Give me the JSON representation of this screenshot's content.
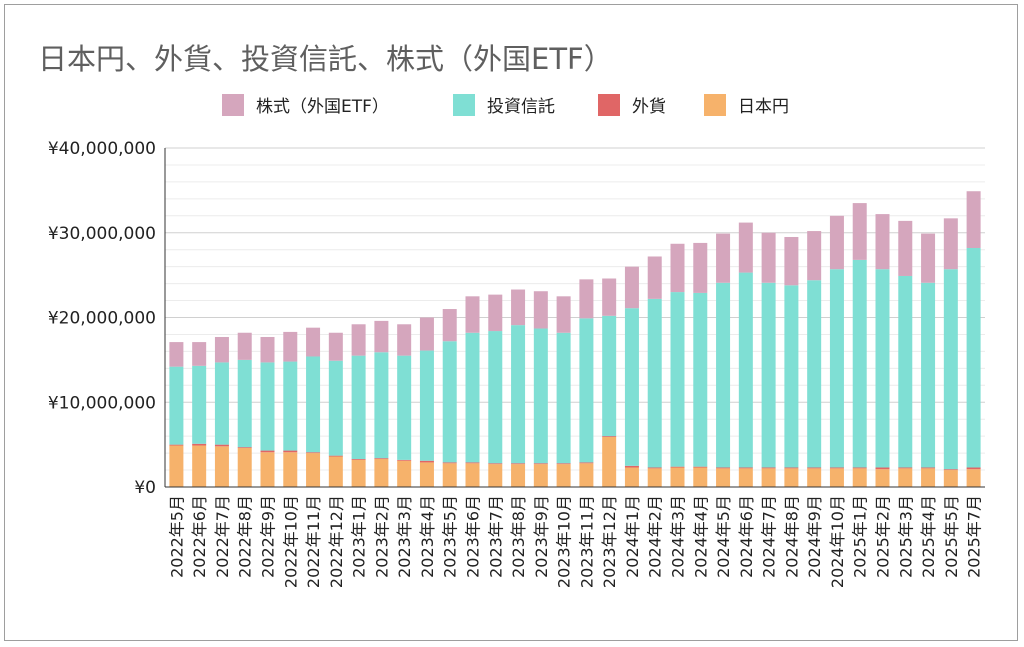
{
  "chart_data": {
    "type": "bar",
    "stacked": true,
    "title": "日本円、外貨、投資信託、株式（外国ETF）",
    "xlabel": "",
    "ylabel": "",
    "ylim": [
      0,
      40000000
    ],
    "yticks": [
      0,
      10000000,
      20000000,
      30000000,
      40000000
    ],
    "ytick_labels": [
      "¥0",
      "¥10,000,000",
      "¥20,000,000",
      "¥30,000,000",
      "¥40,000,000"
    ],
    "grid": true,
    "legend_position": "top",
    "categories": [
      "2022年5月",
      "2022年6月",
      "2022年7月",
      "2022年8月",
      "2022年9月",
      "2022年10月",
      "2022年11月",
      "2022年12月",
      "2023年1月",
      "2023年2月",
      "2023年3月",
      "2023年4月",
      "2023年5月",
      "2023年6月",
      "2023年7月",
      "2023年8月",
      "2023年9月",
      "2023年10月",
      "2023年11月",
      "2023年12月",
      "2024年1月",
      "2024年2月",
      "2024年3月",
      "2024年4月",
      "2024年5月",
      "2024年6月",
      "2024年7月",
      "2024年8月",
      "2024年9月",
      "2024年10月",
      "2025年1月",
      "2025年2月",
      "2025年3月",
      "2025年4月",
      "2025年5月",
      "2025年7月"
    ],
    "series": [
      {
        "name": "日本円",
        "color": "#f6b26b",
        "values": [
          4900000,
          4900000,
          4800000,
          4600000,
          4100000,
          4100000,
          4000000,
          3600000,
          3200000,
          3300000,
          3100000,
          2900000,
          2800000,
          2800000,
          2700000,
          2700000,
          2700000,
          2700000,
          2800000,
          5900000,
          2300000,
          2200000,
          2300000,
          2300000,
          2200000,
          2200000,
          2200000,
          2200000,
          2200000,
          2200000,
          2200000,
          2100000,
          2200000,
          2200000,
          2000000,
          2100000
        ]
      },
      {
        "name": "外貨",
        "color": "#e06666",
        "values": [
          100000,
          200000,
          200000,
          100000,
          200000,
          200000,
          100000,
          100000,
          100000,
          100000,
          100000,
          200000,
          100000,
          100000,
          100000,
          100000,
          100000,
          100000,
          100000,
          100000,
          200000,
          100000,
          100000,
          100000,
          100000,
          100000,
          100000,
          100000,
          100000,
          100000,
          100000,
          200000,
          100000,
          100000,
          100000,
          200000
        ]
      },
      {
        "name": "投資信託",
        "color": "#7fdfd4",
        "values": [
          9200000,
          9200000,
          9700000,
          10300000,
          10400000,
          10500000,
          11300000,
          11200000,
          12200000,
          12500000,
          12300000,
          13000000,
          14300000,
          15300000,
          15600000,
          16300000,
          15900000,
          15400000,
          17000000,
          14200000,
          18600000,
          19900000,
          20600000,
          20500000,
          21800000,
          23000000,
          21800000,
          21500000,
          22100000,
          23400000,
          24500000,
          23400000,
          22600000,
          21800000,
          23600000,
          25900000
        ]
      },
      {
        "name": "株式（外国ETF）",
        "color": "#d5a6bd",
        "values": [
          2900000,
          2800000,
          3000000,
          3200000,
          3000000,
          3500000,
          3400000,
          3300000,
          3700000,
          3700000,
          3700000,
          3900000,
          3800000,
          4300000,
          4300000,
          4200000,
          4400000,
          4300000,
          4600000,
          4400000,
          4900000,
          5000000,
          5700000,
          5900000,
          5800000,
          5900000,
          5900000,
          5700000,
          5800000,
          6300000,
          6700000,
          6500000,
          6500000,
          5800000,
          6000000,
          6700000
        ]
      }
    ]
  }
}
